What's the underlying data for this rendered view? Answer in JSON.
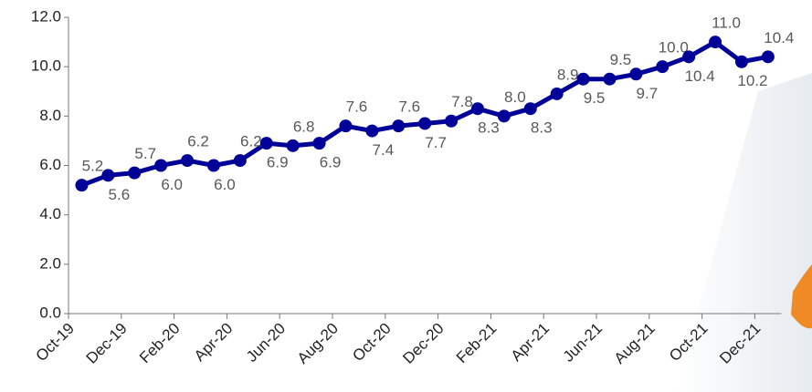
{
  "chart_data": {
    "type": "line",
    "categories": [
      "Oct-19",
      null,
      "Dec-19",
      null,
      "Feb-20",
      null,
      "Apr-20",
      null,
      "Jun-20",
      null,
      "Aug-20",
      null,
      "Oct-20",
      null,
      "Dec-20",
      null,
      "Feb-21",
      null,
      "Apr-21",
      null,
      "Jun-21",
      null,
      "Aug-21",
      null,
      "Oct-21",
      null,
      "Dec-21"
    ],
    "series": [
      {
        "color": "#000099",
        "values": [
          5.2,
          5.6,
          5.7,
          6.0,
          6.2,
          6.0,
          6.2,
          6.9,
          6.8,
          6.9,
          7.6,
          7.4,
          7.6,
          7.7,
          7.8,
          8.3,
          8.0,
          8.3,
          8.9,
          9.5,
          9.5,
          9.7,
          10.0,
          10.4,
          11.0,
          10.2,
          10.4
        ],
        "value_labels": [
          "5.2",
          "5.6",
          "5.7",
          "6.0",
          "6.2",
          "6.0",
          "6.2",
          "6.9",
          "6.8",
          "6.9",
          "7.6",
          "7.4",
          "7.6",
          "7.7",
          "7.8",
          "8.3",
          "8.0",
          "8.3",
          "8.9",
          "9.5",
          "9.5",
          "9.7",
          "10.0",
          "10.4",
          "11.0",
          "10.2",
          "10.4"
        ]
      }
    ],
    "ylim": [
      0,
      12
    ],
    "yticks": [
      {
        "value": 0,
        "label": "0.0"
      },
      {
        "value": 2,
        "label": "2.0"
      },
      {
        "value": 4,
        "label": "4.0"
      },
      {
        "value": 6,
        "label": "6.0"
      },
      {
        "value": 8,
        "label": "8.0"
      },
      {
        "value": 10,
        "label": "10.0"
      },
      {
        "value": 12,
        "label": "12.0"
      }
    ]
  }
}
